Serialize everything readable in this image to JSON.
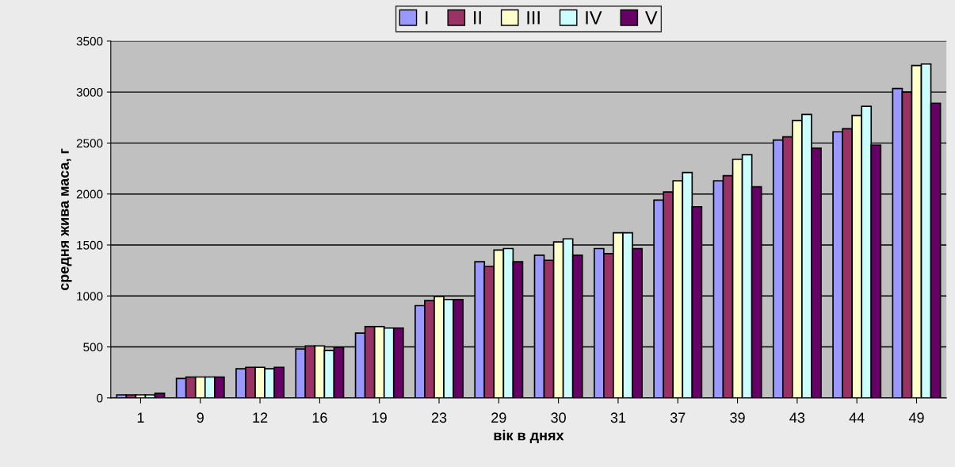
{
  "chart_data": {
    "type": "bar",
    "xlabel": "вік в днях",
    "ylabel": "средня жива маса, г",
    "categories": [
      "1",
      "9",
      "12",
      "16",
      "19",
      "23",
      "29",
      "30",
      "31",
      "37",
      "39",
      "43",
      "44",
      "49"
    ],
    "series": [
      {
        "name": "I",
        "color": "#9999ff",
        "values": [
          30,
          190,
          285,
          480,
          635,
          905,
          1335,
          1400,
          1465,
          1940,
          2130,
          2530,
          2610,
          3035
        ]
      },
      {
        "name": "II",
        "color": "#993366",
        "values": [
          30,
          205,
          300,
          510,
          700,
          955,
          1290,
          1350,
          1415,
          2020,
          2180,
          2560,
          2640,
          3000
        ]
      },
      {
        "name": "III",
        "color": "#ffffcc",
        "values": [
          30,
          205,
          300,
          510,
          700,
          995,
          1450,
          1530,
          1620,
          2130,
          2340,
          2720,
          2770,
          3260
        ]
      },
      {
        "name": "IV",
        "color": "#ccffff",
        "values": [
          30,
          205,
          285,
          465,
          685,
          965,
          1465,
          1560,
          1620,
          2210,
          2385,
          2780,
          2860,
          3275
        ]
      },
      {
        "name": "V",
        "color": "#660066",
        "values": [
          45,
          205,
          300,
          495,
          685,
          965,
          1335,
          1400,
          1465,
          1875,
          2070,
          2450,
          2480,
          2890
        ]
      }
    ],
    "ylim": [
      0,
      3500
    ],
    "yticks": [
      0,
      500,
      1000,
      1500,
      2000,
      2500,
      3000,
      3500
    ],
    "grid": "y",
    "legend": "top"
  }
}
